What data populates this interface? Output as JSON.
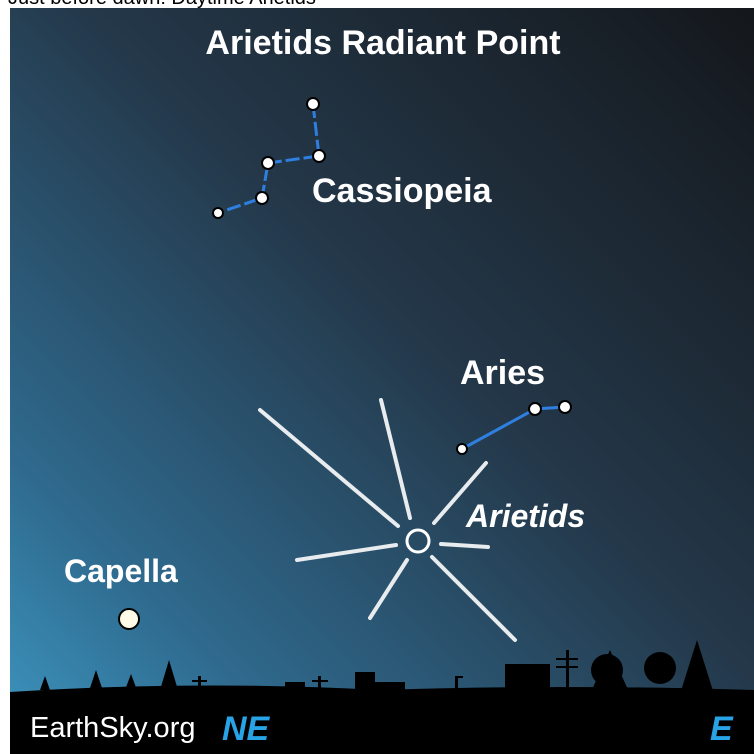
{
  "caption": "Just before dawn: Daytime Arietids",
  "title": "Arietids Radiant Point",
  "labels": {
    "cassiopeia": "Cassiopeia",
    "aries": "Aries",
    "arietids": "Arietids",
    "capella": "Capella"
  },
  "footer": {
    "brand": "EarthSky.org",
    "left_direction": "NE",
    "right_direction": "E"
  }
}
